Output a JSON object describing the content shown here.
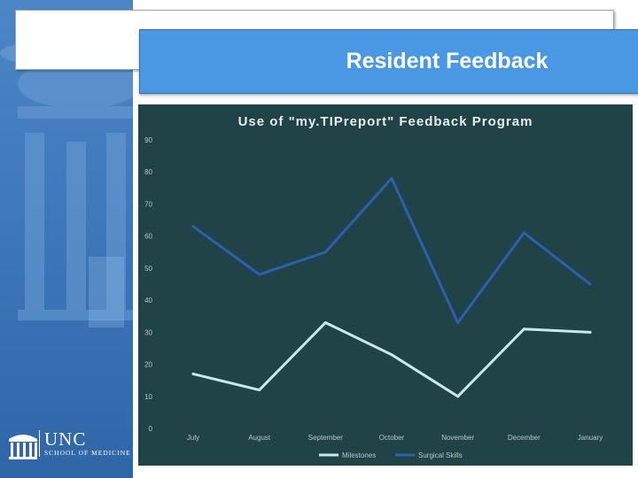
{
  "slide": {
    "title": "Resident Feedback"
  },
  "logo": {
    "name": "UNC",
    "subtitle": "SCHOOL OF MEDICINE"
  },
  "colors": {
    "sidebar": "#3f78bb",
    "title_bar": "#4a98e4",
    "chart_bg": "#1f4347",
    "milestones": "#c9e8ea",
    "surgical_skills": "#2e5fae"
  },
  "chart_data": {
    "type": "line",
    "title": "Use of \"my.TIPreport\" Feedback Program",
    "categories": [
      "July",
      "August",
      "September",
      "October",
      "November",
      "December",
      "January"
    ],
    "ylim": [
      0,
      90
    ],
    "yticks": [
      0,
      10,
      20,
      30,
      40,
      50,
      60,
      70,
      80,
      90
    ],
    "series": [
      {
        "name": "Milestones",
        "values": [
          17,
          12,
          33,
          23,
          10,
          31,
          30
        ]
      },
      {
        "name": "Surgical Skills",
        "values": [
          63,
          48,
          55,
          78,
          33,
          61,
          45
        ]
      }
    ],
    "legend": "bottom",
    "grid": false
  }
}
